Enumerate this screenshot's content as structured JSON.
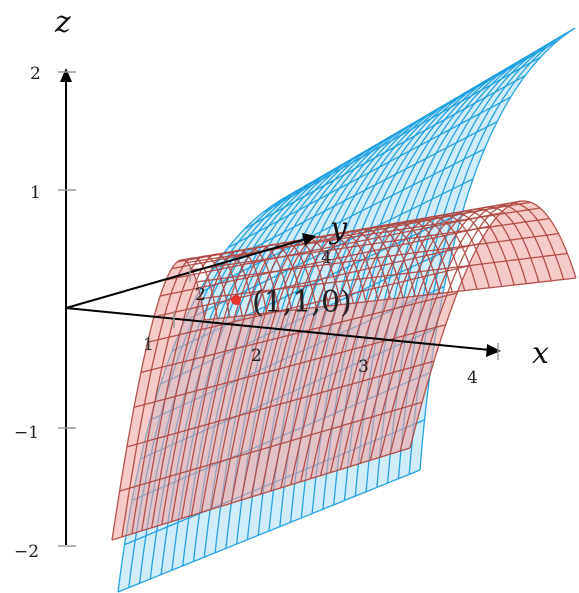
{
  "axes": {
    "x": {
      "name": "x",
      "ticks": [
        "1",
        "2",
        "3",
        "4"
      ]
    },
    "y": {
      "name": "y",
      "ticks": [
        "2",
        "4"
      ]
    },
    "z": {
      "name": "z",
      "ticks": [
        "2",
        "1",
        "−1",
        "−2"
      ]
    }
  },
  "point": {
    "label": "(1,1,0)",
    "color": "#e8322b"
  },
  "surfaces": {
    "blue": {
      "stroke": "#1e9fe0",
      "fill": "#a8dcf4"
    },
    "red": {
      "stroke": "#b04a45",
      "fill": "#f0a19c"
    }
  }
}
